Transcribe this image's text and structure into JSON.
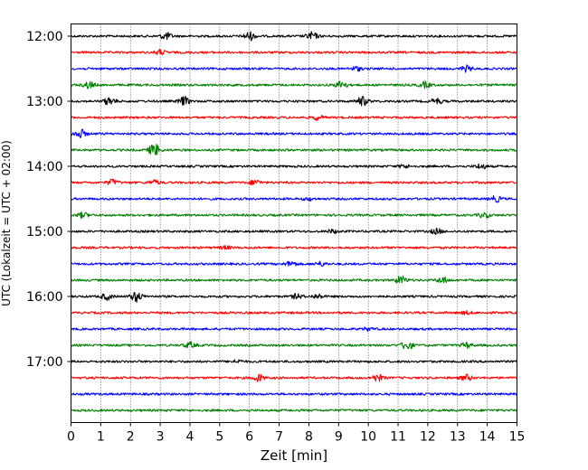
{
  "chart_data": {
    "type": "line",
    "title": "",
    "xlabel": "Zeit  [min]",
    "ylabel": "UTC (Lokalzeit = UTC + 02:00)",
    "xlim": [
      0,
      15
    ],
    "x_ticks": [
      "0",
      "1",
      "2",
      "3",
      "4",
      "5",
      "6",
      "7",
      "8",
      "9",
      "10",
      "11",
      "12",
      "13",
      "14",
      "15"
    ],
    "y_ticks": [
      "12:00",
      "13:00",
      "14:00",
      "15:00",
      "16:00",
      "17:00"
    ],
    "grid": "vertical dotted lines at each minute",
    "trace_interval_minutes": 15,
    "color_cycle": [
      "#000000",
      "#ff0000",
      "#0000ff",
      "#008000"
    ],
    "series": [
      {
        "start": "12:00",
        "color": "#000000",
        "bursts": [
          [
            6.0,
            1.5
          ],
          [
            8.1,
            1.4
          ],
          [
            3.2,
            1.2
          ]
        ]
      },
      {
        "start": "12:15",
        "color": "#ff0000",
        "bursts": [
          [
            3.0,
            0.8
          ]
        ]
      },
      {
        "start": "12:30",
        "color": "#0000ff",
        "bursts": [
          [
            13.3,
            1.0
          ],
          [
            9.6,
            0.7
          ]
        ]
      },
      {
        "start": "12:45",
        "color": "#008000",
        "bursts": [
          [
            0.6,
            1.2
          ],
          [
            9.1,
            1.4
          ],
          [
            11.9,
            1.0
          ]
        ]
      },
      {
        "start": "13:00",
        "color": "#000000",
        "bursts": [
          [
            1.3,
            1.4
          ],
          [
            3.8,
            1.5
          ],
          [
            9.8,
            1.6
          ],
          [
            12.3,
            1.0
          ]
        ]
      },
      {
        "start": "13:15",
        "color": "#ff0000",
        "bursts": [
          [
            8.3,
            0.8
          ]
        ]
      },
      {
        "start": "13:30",
        "color": "#0000ff",
        "bursts": [
          [
            0.3,
            1.6
          ]
        ]
      },
      {
        "start": "13:45",
        "color": "#008000",
        "bursts": [
          [
            2.8,
            2.2
          ]
        ]
      },
      {
        "start": "14:00",
        "color": "#000000",
        "bursts": [
          [
            13.8,
            0.9
          ],
          [
            11.2,
            0.6
          ]
        ]
      },
      {
        "start": "14:15",
        "color": "#ff0000",
        "bursts": [
          [
            1.4,
            1.0
          ],
          [
            6.2,
            0.9
          ],
          [
            2.8,
            0.8
          ]
        ]
      },
      {
        "start": "14:30",
        "color": "#0000ff",
        "bursts": [
          [
            14.3,
            1.0
          ],
          [
            8.0,
            0.5
          ]
        ]
      },
      {
        "start": "14:45",
        "color": "#008000",
        "bursts": [
          [
            0.4,
            0.9
          ],
          [
            13.9,
            0.9
          ]
        ]
      },
      {
        "start": "15:00",
        "color": "#000000",
        "bursts": [
          [
            12.3,
            0.9
          ],
          [
            8.8,
            0.6
          ]
        ]
      },
      {
        "start": "15:15",
        "color": "#ff0000",
        "bursts": [
          [
            5.2,
            0.5
          ]
        ]
      },
      {
        "start": "15:30",
        "color": "#0000ff",
        "bursts": [
          [
            7.4,
            0.9
          ],
          [
            8.4,
            0.7
          ]
        ]
      },
      {
        "start": "15:45",
        "color": "#008000",
        "bursts": [
          [
            11.1,
            1.4
          ],
          [
            12.5,
            1.1
          ]
        ]
      },
      {
        "start": "16:00",
        "color": "#000000",
        "bursts": [
          [
            1.2,
            1.1
          ],
          [
            2.2,
            1.8
          ],
          [
            7.6,
            0.8
          ],
          [
            8.3,
            0.8
          ]
        ]
      },
      {
        "start": "16:15",
        "color": "#ff0000",
        "bursts": [
          [
            13.3,
            0.5
          ]
        ]
      },
      {
        "start": "16:30",
        "color": "#0000ff",
        "bursts": [
          [
            10.0,
            0.5
          ]
        ]
      },
      {
        "start": "16:45",
        "color": "#008000",
        "bursts": [
          [
            4.0,
            1.0
          ],
          [
            11.3,
            1.6
          ],
          [
            13.3,
            0.9
          ]
        ]
      },
      {
        "start": "17:00",
        "color": "#000000",
        "bursts": [
          [
            5.6,
            0.5
          ]
        ]
      },
      {
        "start": "17:15",
        "color": "#ff0000",
        "bursts": [
          [
            6.3,
            1.2
          ],
          [
            10.3,
            1.2
          ],
          [
            13.3,
            1.0
          ]
        ]
      },
      {
        "start": "17:30",
        "color": "#0000ff",
        "bursts": []
      },
      {
        "start": "17:45",
        "color": "#008000",
        "bursts": []
      }
    ]
  }
}
